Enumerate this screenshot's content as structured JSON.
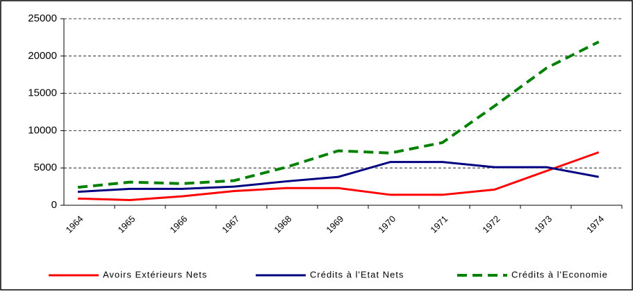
{
  "chart_data": {
    "type": "line",
    "categories": [
      "1964",
      "1965",
      "1966",
      "1967",
      "1968",
      "1969",
      "1970",
      "1971",
      "1972",
      "1973",
      "1974"
    ],
    "series": [
      {
        "name": "Avoirs Extérieurs Nets",
        "color": "#ff0000",
        "dash": false,
        "values": [
          900,
          700,
          1200,
          1900,
          2300,
          2300,
          1400,
          1400,
          2100,
          4600,
          7100
        ]
      },
      {
        "name": "Crédits à l'Etat Nets",
        "color": "#000080",
        "dash": false,
        "values": [
          1800,
          2200,
          2200,
          2500,
          3200,
          3800,
          5800,
          5800,
          5100,
          5100,
          3800
        ]
      },
      {
        "name": "Crédits à l'Economie",
        "color": "#008000",
        "dash": true,
        "values": [
          2400,
          3100,
          2900,
          3300,
          5100,
          7300,
          7000,
          8400,
          13300,
          18400,
          21900
        ]
      }
    ],
    "ylim": [
      0,
      25000
    ],
    "yticks": [
      0,
      5000,
      10000,
      15000,
      20000,
      25000
    ],
    "grid": true,
    "legend": "bottom"
  }
}
